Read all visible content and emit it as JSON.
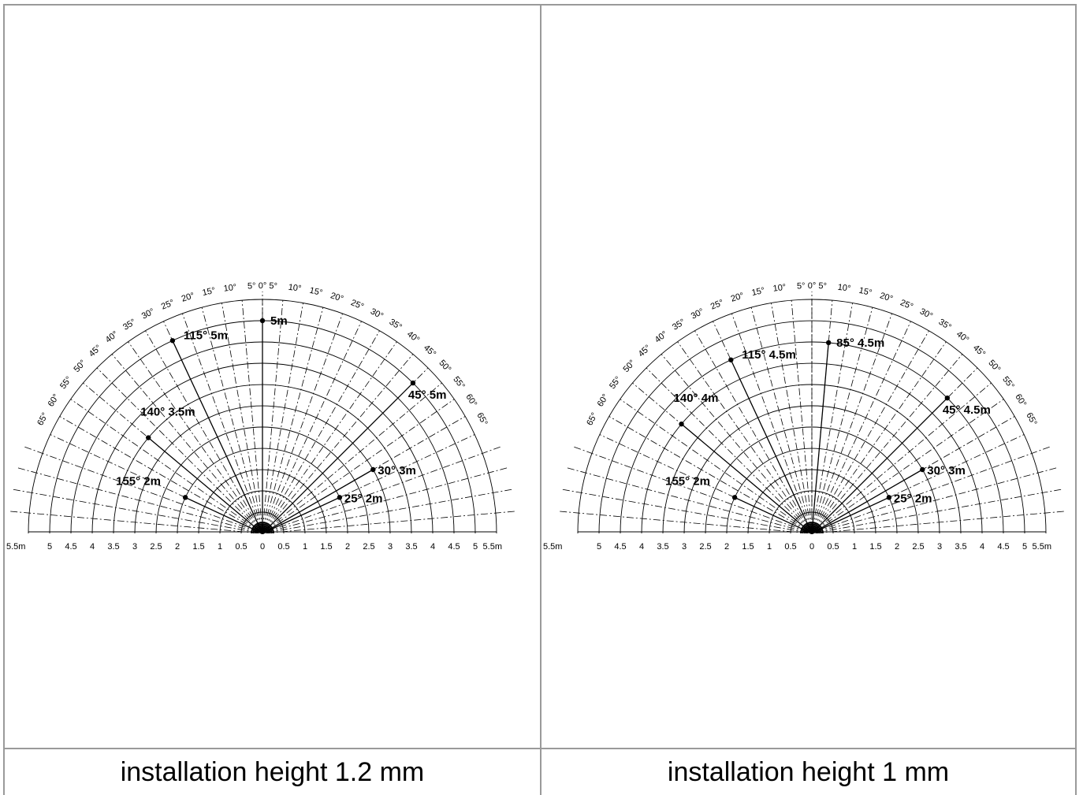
{
  "panels": [
    {
      "caption": "installation height 1.2 mm",
      "annotations": [
        {
          "label": "5m",
          "angle_deg": 90,
          "r_m": 5
        },
        {
          "label": "115° 5m",
          "angle_deg": 115,
          "r_m": 5
        },
        {
          "label": "45° 5m",
          "angle_deg": 45,
          "r_m": 5
        },
        {
          "label": "140° 3.5m",
          "angle_deg": 140,
          "r_m": 3.5
        },
        {
          "label": "30° 3m",
          "angle_deg": 30,
          "r_m": 3
        },
        {
          "label": "155° 2m",
          "angle_deg": 155,
          "r_m": 2
        },
        {
          "label": "25° 2m",
          "angle_deg": 25,
          "r_m": 2
        }
      ]
    },
    {
      "caption": "installation height 1 mm",
      "annotations": [
        {
          "label": "85° 4.5m",
          "angle_deg": 85,
          "r_m": 4.5
        },
        {
          "label": "115° 4.5m",
          "angle_deg": 115,
          "r_m": 4.5
        },
        {
          "label": "45° 4.5m",
          "angle_deg": 45,
          "r_m": 4.5
        },
        {
          "label": "140° 4m",
          "angle_deg": 140,
          "r_m": 4
        },
        {
          "label": "30° 3m",
          "angle_deg": 30,
          "r_m": 3
        },
        {
          "label": "155° 2m",
          "angle_deg": 155,
          "r_m": 2
        },
        {
          "label": "25° 2m",
          "angle_deg": 25,
          "r_m": 2
        }
      ]
    }
  ],
  "axis": {
    "left_labels": [
      "5.5m",
      "5",
      "4.5",
      "4",
      "3.5",
      "3",
      "2.5",
      "2",
      "1.5",
      "1",
      "0.5"
    ],
    "center_label": "0",
    "right_labels": [
      "0.5",
      "1",
      "1.5",
      "2",
      "2.5",
      "3",
      "3.5",
      "4",
      "4.5",
      "5",
      "5.5m"
    ]
  },
  "angle_labels": [
    "65°",
    "60°",
    "55°",
    "50°",
    "45°",
    "40°",
    "35°",
    "30°",
    "25°",
    "20°",
    "15°",
    "10°",
    "5°",
    "0°",
    "5°",
    "10°",
    "15°",
    "20°",
    "25°",
    "30°",
    "35°",
    "40°",
    "45°",
    "50°",
    "55°",
    "60°",
    "65°"
  ]
}
